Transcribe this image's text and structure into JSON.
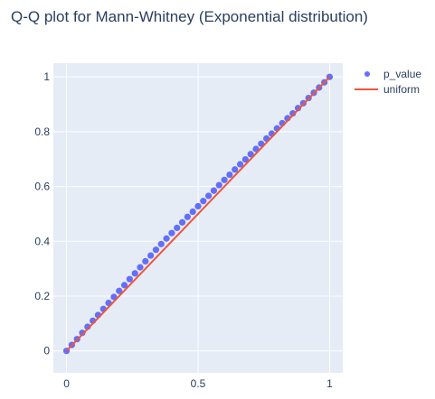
{
  "chart_data": {
    "type": "scatter",
    "title": "Q-Q plot for Mann-Whitney (Exponential distribution)",
    "xlabel": "",
    "ylabel": "",
    "xlim": [
      -0.05,
      1.05
    ],
    "ylim": [
      -0.08,
      1.05
    ],
    "x_ticks": [
      0,
      0.5,
      1
    ],
    "x_tick_labels": [
      "0",
      "0.5",
      "1"
    ],
    "y_ticks": [
      0,
      0.2,
      0.4,
      0.6,
      0.8,
      1
    ],
    "y_tick_labels": [
      "0",
      "0.2",
      "0.4",
      "0.6",
      "0.8",
      "1"
    ],
    "grid": true,
    "legend_position": "top-right",
    "series": [
      {
        "name": "p_value",
        "mode": "markers",
        "color": "#636efa",
        "x": [
          0,
          0.02,
          0.04,
          0.06,
          0.08,
          0.1,
          0.12,
          0.14,
          0.16,
          0.18,
          0.2,
          0.22,
          0.24,
          0.26,
          0.28,
          0.3,
          0.32,
          0.34,
          0.36,
          0.38,
          0.4,
          0.42,
          0.44,
          0.46,
          0.48,
          0.5,
          0.52,
          0.54,
          0.56,
          0.58,
          0.6,
          0.62,
          0.64,
          0.66,
          0.68,
          0.7,
          0.72,
          0.74,
          0.76,
          0.78,
          0.8,
          0.82,
          0.84,
          0.86,
          0.88,
          0.9,
          0.92,
          0.94,
          0.96,
          0.98,
          1
        ],
        "y": [
          0,
          0.022,
          0.043,
          0.066,
          0.088,
          0.11,
          0.131,
          0.153,
          0.175,
          0.197,
          0.219,
          0.24,
          0.262,
          0.283,
          0.305,
          0.327,
          0.348,
          0.369,
          0.39,
          0.41,
          0.43,
          0.449,
          0.469,
          0.489,
          0.508,
          0.528,
          0.547,
          0.566,
          0.585,
          0.605,
          0.624,
          0.643,
          0.662,
          0.681,
          0.699,
          0.718,
          0.737,
          0.756,
          0.775,
          0.793,
          0.812,
          0.831,
          0.849,
          0.867,
          0.886,
          0.904,
          0.923,
          0.942,
          0.961,
          0.98,
          1
        ]
      },
      {
        "name": "uniform",
        "mode": "lines",
        "color": "#ef553b",
        "x": [
          0,
          1
        ],
        "y": [
          0,
          1
        ]
      }
    ]
  }
}
